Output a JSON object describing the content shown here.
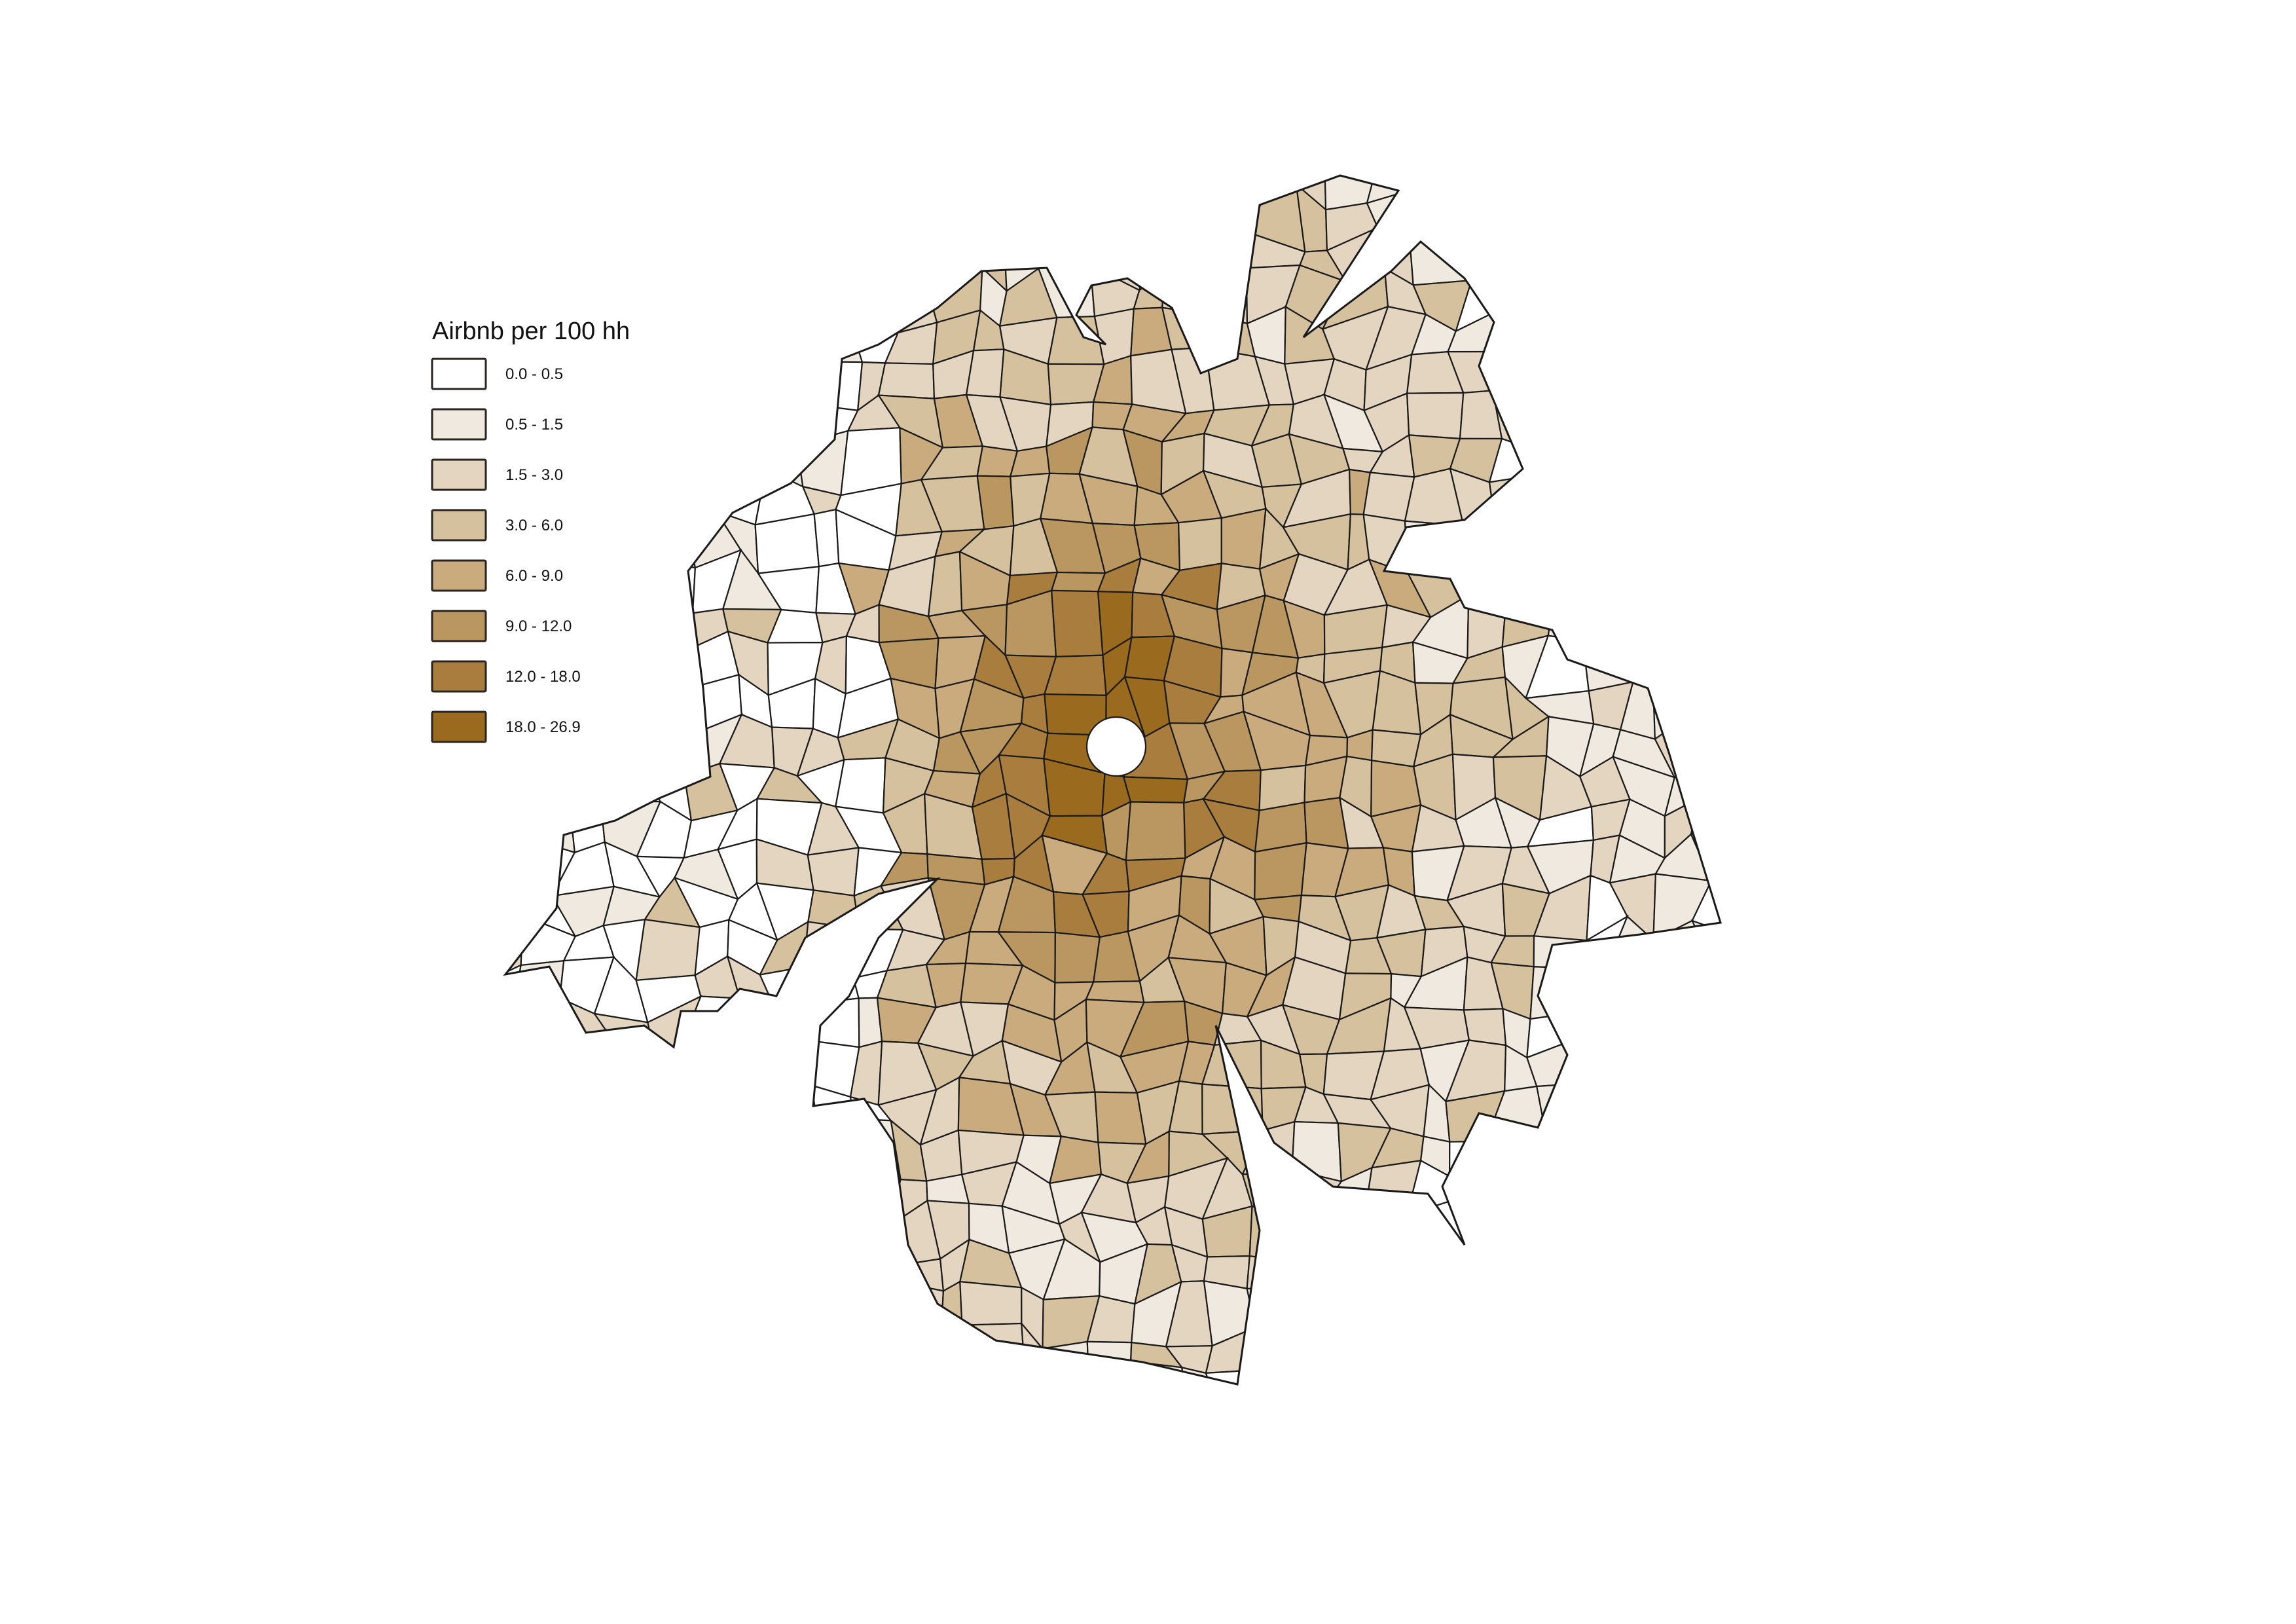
{
  "legend": {
    "title": "Airbnb per 100 hh",
    "classes": [
      {
        "label": "0.0 - 0.5",
        "color": "#ffffff"
      },
      {
        "label": "0.5 - 1.5",
        "color": "#f0e9df"
      },
      {
        "label": "1.5 - 3.0",
        "color": "#e3d5c0"
      },
      {
        "label": "3.0 - 6.0",
        "color": "#d6c19f"
      },
      {
        "label": "6.0 - 9.0",
        "color": "#c9ab7e"
      },
      {
        "label": "9.0 - 12.0",
        "color": "#ba9660"
      },
      {
        "label": "12.0 - 18.0",
        "color": "#a97d3e"
      },
      {
        "label": "18.0 - 26.9",
        "color": "#9a6a1e"
      }
    ]
  },
  "style": {
    "stroke": "#1a1a1a"
  }
}
